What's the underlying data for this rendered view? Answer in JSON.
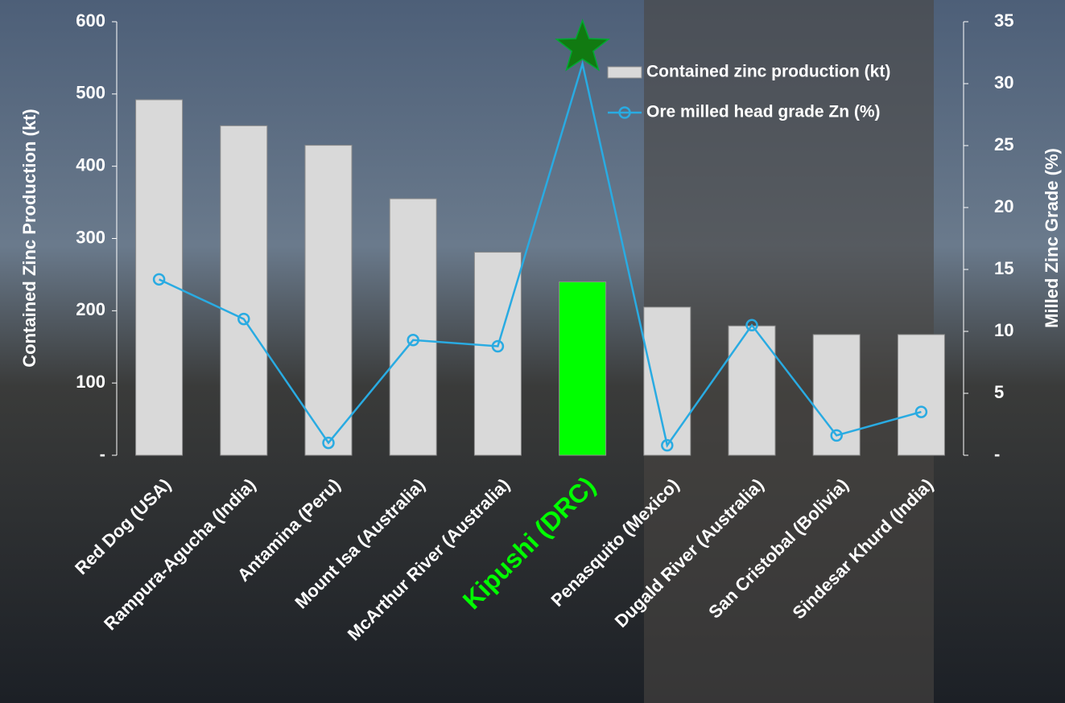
{
  "chart_data": {
    "type": "bar",
    "categories": [
      "Red Dog (USA)",
      "Rampura-Agucha (India)",
      "Antamina (Peru)",
      "Mount Isa (Australia)",
      "McArthur River (Australia)",
      "Kipushi (DRC)",
      "Penasquito (Mexico)",
      "Dugald River (Australia)",
      "San Cristobal (Bolivia)",
      "Sindesar Khurd (India)"
    ],
    "category_label_colors": [
      "#ffffff",
      "#ffffff",
      "#ffffff",
      "#ffffff",
      "#ffffff",
      "#00ff00",
      "#ffffff",
      "#ffffff",
      "#ffffff",
      "#ffffff"
    ],
    "series": [
      {
        "name": "Contained zinc production (kt)",
        "type": "bar",
        "color": "#d9d9d9",
        "colors": [
          "#d9d9d9",
          "#d9d9d9",
          "#d9d9d9",
          "#d9d9d9",
          "#d9d9d9",
          "#00ff00",
          "#d9d9d9",
          "#d9d9d9",
          "#d9d9d9",
          "#d9d9d9"
        ],
        "values": [
          492,
          456,
          429,
          355,
          281,
          240,
          205,
          179,
          167,
          167
        ]
      },
      {
        "name": "Ore milled head grade Zn (%)",
        "type": "line",
        "axis": "y2",
        "color": "#29abe2",
        "values": [
          14.2,
          11.0,
          1.0,
          9.3,
          8.8,
          31.6,
          0.8,
          10.5,
          1.6,
          3.5
        ],
        "star_marker": {
          "index": 5,
          "color": "#117a11"
        }
      }
    ],
    "ylabel": "Contained Zinc Production (kt)",
    "y2label": "Milled Zinc Grade (%)",
    "ylim": [
      0,
      600
    ],
    "yticks": [
      {
        "value": 0,
        "label": "-"
      },
      100,
      200,
      300,
      400,
      500,
      600
    ],
    "y2lim": [
      0,
      35
    ],
    "y2ticks": [
      {
        "value": 0,
        "label": "-"
      },
      5,
      10,
      15,
      20,
      25,
      30,
      35
    ],
    "legend": "upper right"
  }
}
